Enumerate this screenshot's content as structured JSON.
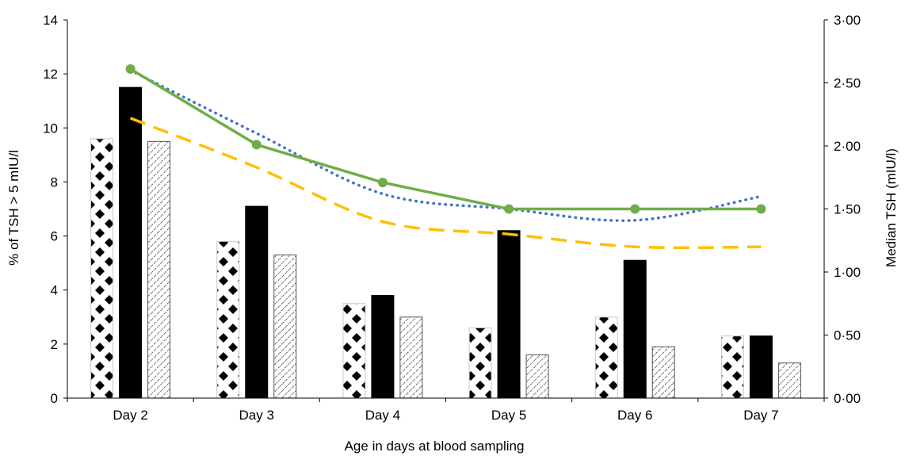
{
  "chart_data": {
    "type": "bar",
    "categories": [
      "Day 2",
      "Day 3",
      "Day 4",
      "Day 5",
      "Day 6",
      "Day 7"
    ],
    "xlabel": "Age in days at blood sampling",
    "ylabel": "% of TSH > 5 mIU/l",
    "y2label": "Median TSH (mIU/l)",
    "ylim": [
      0,
      14
    ],
    "y2lim": [
      0,
      3
    ],
    "yticks": [
      "0",
      "2",
      "4",
      "6",
      "8",
      "10",
      "12",
      "14"
    ],
    "y2ticks": [
      "0·00",
      "0·50",
      "1·00",
      "1·50",
      "2·00",
      "2·50",
      "3·00"
    ],
    "grid": false,
    "bar_series": [
      {
        "pattern": "diamond-check",
        "values": [
          9.6,
          5.8,
          3.5,
          2.6,
          3.0,
          2.3
        ]
      },
      {
        "pattern": "solid-black",
        "values": [
          11.5,
          7.1,
          3.8,
          6.2,
          5.1,
          2.3
        ]
      },
      {
        "pattern": "diagonal-hatch",
        "values": [
          9.5,
          5.3,
          3.0,
          1.6,
          1.9,
          1.3
        ]
      }
    ],
    "line_series": [
      {
        "style": "solid-markers",
        "color": "#70ad47",
        "axis": "right",
        "values": [
          2.61,
          2.01,
          1.71,
          1.5,
          1.5,
          1.5
        ]
      },
      {
        "style": "dotted",
        "color": "#4472c4",
        "axis": "right",
        "values": [
          2.6,
          2.1,
          1.62,
          1.5,
          1.41,
          1.6
        ]
      },
      {
        "style": "dashed",
        "color": "#ffc000",
        "axis": "right",
        "values": [
          2.22,
          1.83,
          1.4,
          1.3,
          1.2,
          1.2
        ]
      }
    ]
  }
}
